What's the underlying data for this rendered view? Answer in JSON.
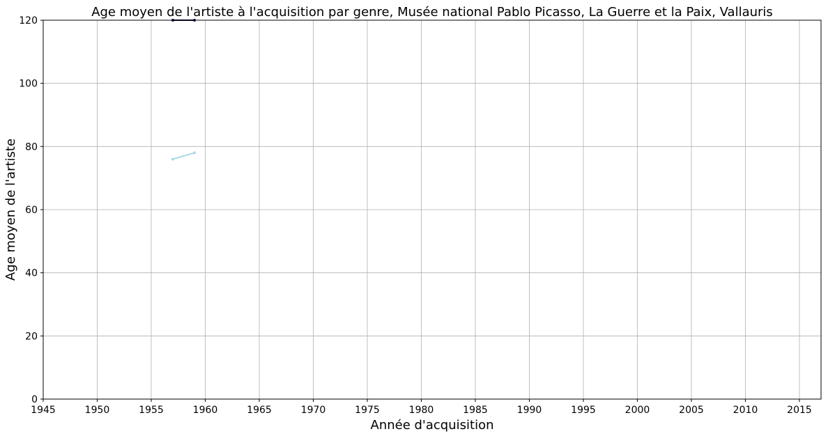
{
  "chart_data": {
    "type": "line",
    "title": "Age moyen de l'artiste à l'acquisition par genre, Musée national Pablo Picasso, La Guerre et la Paix, Vallauris",
    "xlabel": "Année d'acquisition",
    "ylabel": "Age moyen de l'artiste",
    "xlim": [
      1945,
      2017
    ],
    "ylim": [
      0,
      120
    ],
    "xticks": [
      1945,
      1950,
      1955,
      1960,
      1965,
      1970,
      1975,
      1980,
      1985,
      1990,
      1995,
      2000,
      2005,
      2010,
      2015
    ],
    "yticks": [
      0,
      20,
      40,
      60,
      80,
      100,
      120
    ],
    "grid": true,
    "legend": "none",
    "series": [
      {
        "color": "#0b0b3b",
        "x": [
          1957,
          1959
        ],
        "values": [
          120,
          120
        ]
      },
      {
        "color": "#add8e6",
        "x": [
          1957,
          1959
        ],
        "values": [
          76,
          78
        ]
      }
    ]
  }
}
